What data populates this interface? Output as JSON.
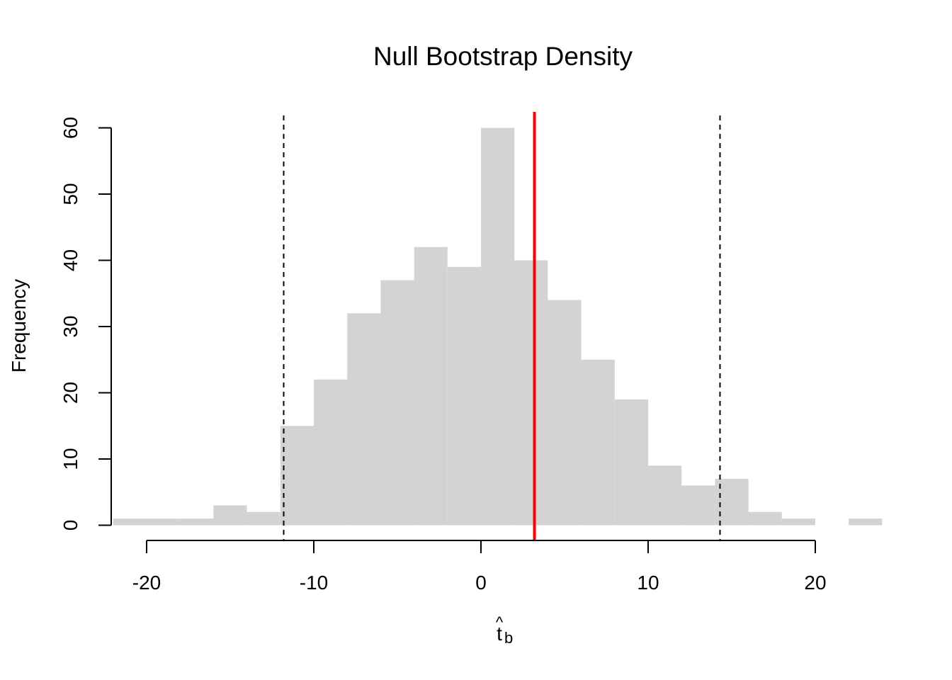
{
  "chart_data": {
    "type": "bar",
    "subtype": "histogram",
    "title": "Null Bootstrap Density",
    "xlabel": "t",
    "xlabel_accent": "^",
    "xlabel_subscript": "b",
    "ylabel": "Frequency",
    "bin_width": 2,
    "bins": [
      {
        "x0": -22,
        "x1": -20,
        "count": 1
      },
      {
        "x0": -20,
        "x1": -18,
        "count": 1
      },
      {
        "x0": -18,
        "x1": -16,
        "count": 1
      },
      {
        "x0": -16,
        "x1": -14,
        "count": 3
      },
      {
        "x0": -14,
        "x1": -12,
        "count": 2
      },
      {
        "x0": -12,
        "x1": -10,
        "count": 15
      },
      {
        "x0": -10,
        "x1": -8,
        "count": 22
      },
      {
        "x0": -8,
        "x1": -6,
        "count": 32
      },
      {
        "x0": -6,
        "x1": -4,
        "count": 37
      },
      {
        "x0": -4,
        "x1": -2,
        "count": 42
      },
      {
        "x0": -2,
        "x1": 0,
        "count": 39
      },
      {
        "x0": 0,
        "x1": 2,
        "count": 60
      },
      {
        "x0": 2,
        "x1": 4,
        "count": 40
      },
      {
        "x0": 4,
        "x1": 6,
        "count": 34
      },
      {
        "x0": 6,
        "x1": 8,
        "count": 25
      },
      {
        "x0": 8,
        "x1": 10,
        "count": 19
      },
      {
        "x0": 10,
        "x1": 12,
        "count": 9
      },
      {
        "x0": 12,
        "x1": 14,
        "count": 6
      },
      {
        "x0": 14,
        "x1": 16,
        "count": 7
      },
      {
        "x0": 16,
        "x1": 18,
        "count": 2
      },
      {
        "x0": 18,
        "x1": 20,
        "count": 1
      },
      {
        "x0": 20,
        "x1": 22,
        "count": 0
      },
      {
        "x0": 22,
        "x1": 24,
        "count": 1
      }
    ],
    "x_ticks": [
      -20,
      -10,
      0,
      10,
      20
    ],
    "y_ticks": [
      0,
      10,
      20,
      30,
      40,
      50,
      60
    ],
    "xlim": [
      -22,
      24
    ],
    "ylim": [
      0,
      60
    ],
    "bar_color": "#d3d3d3",
    "observed_line": {
      "x": 3.2,
      "color": "#ff0000",
      "style": "solid"
    },
    "critical_lines": [
      {
        "x": -11.8,
        "color": "#000000",
        "style": "dashed"
      },
      {
        "x": 14.3,
        "color": "#000000",
        "style": "dashed"
      }
    ],
    "grid": false,
    "legend": "none"
  }
}
